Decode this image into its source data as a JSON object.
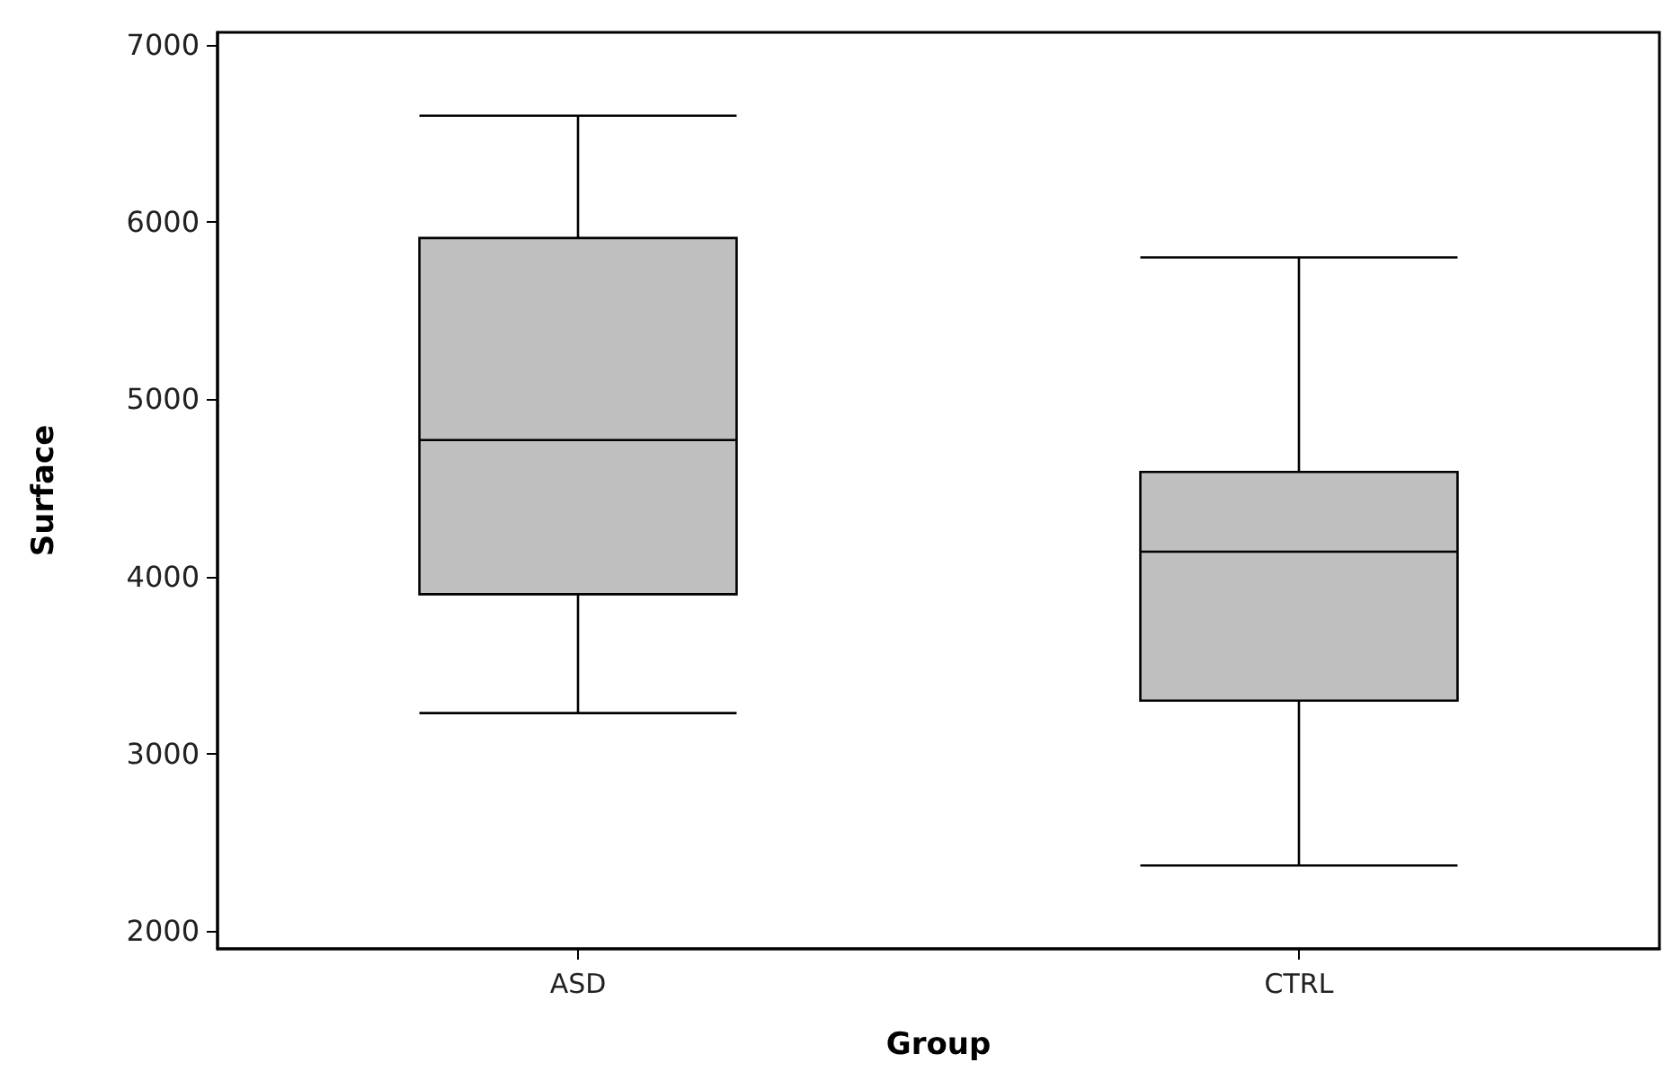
{
  "chart_data": {
    "type": "box",
    "xlabel": "Group",
    "ylabel": "Surface",
    "categories": [
      "ASD",
      "CTRL"
    ],
    "boxes": [
      {
        "low": 3230,
        "q1": 3900,
        "median": 4770,
        "q3": 5910,
        "high": 6600
      },
      {
        "low": 2370,
        "q1": 3300,
        "median": 4140,
        "q3": 4590,
        "high": 5800
      }
    ],
    "color": "#bfbfbf",
    "ylim": [
      1900,
      7070
    ],
    "yticks": [
      2000,
      3000,
      4000,
      5000,
      6000,
      7000
    ],
    "grid": false
  }
}
